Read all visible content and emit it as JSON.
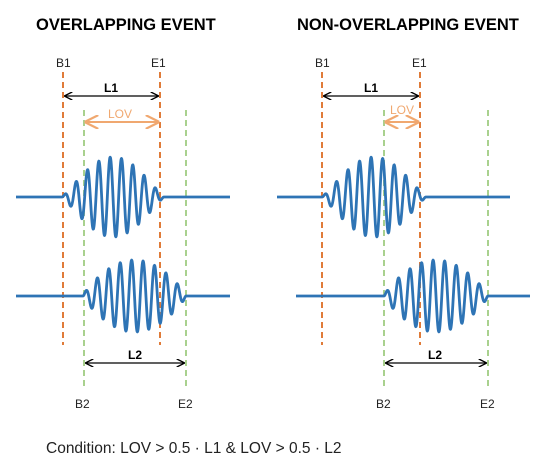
{
  "colors": {
    "wave": "#2e74b5",
    "first_boundary": "#e07b39",
    "second_boundary": "#a9d18e",
    "lov": "#f0a870",
    "dimension": "#000000"
  },
  "panels": [
    {
      "title": "OVERLAPPING  EVENT",
      "labels": {
        "b1": "B1",
        "e1": "E1",
        "b2": "B2",
        "e2": "E2",
        "l1": "L1",
        "l2": "L2",
        "lov": "LOV"
      }
    },
    {
      "title": "NON-OVERLAPPING  EVENT",
      "labels": {
        "b1": "B1",
        "e1": "E1",
        "b2": "B2",
        "e2": "E2",
        "l1": "L1",
        "l2": "L2",
        "lov": "LOV"
      }
    }
  ],
  "condition": "Condition: LOV > 0.5 · L1 & LOV > 0.5 · L2"
}
